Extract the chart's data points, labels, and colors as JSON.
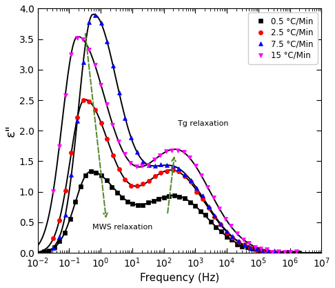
{
  "xlabel": "Frequency (Hz)",
  "ylabel": "ε\"",
  "xlim_exp": [
    -2,
    7
  ],
  "ylim": [
    0.0,
    4.0
  ],
  "yticks": [
    0.0,
    0.5,
    1.0,
    1.5,
    2.0,
    2.5,
    3.0,
    3.5,
    4.0
  ],
  "legend_labels": [
    "0.5 °C/Min",
    "2.5 °C/Min",
    "7.5 °C/Min",
    "15 °C/Min"
  ],
  "colors": [
    "black",
    "red",
    "blue",
    "magenta"
  ],
  "markers": [
    "s",
    "o",
    "^",
    "v"
  ],
  "fit_color": "black",
  "arrow_color": "#5a8c30",
  "annotation_mws": "MWS relaxation",
  "annotation_tg": "Tg relaxation",
  "series": [
    {
      "key": "0.5",
      "p1_f0": 0.45,
      "p1_amp": 1.28,
      "p1_lw": 0.48,
      "p1_rw": 0.85,
      "p2_f0": 220,
      "p2_amp": 0.93,
      "p2_lw": 1.1,
      "p2_rw": 1.05,
      "scatter_f_min": -1.8,
      "scatter_f_max": 6.3,
      "scatter_n": 50
    },
    {
      "key": "2.5",
      "p1_f0": 0.3,
      "p1_amp": 2.45,
      "p1_lw": 0.45,
      "p1_rw": 0.8,
      "p2_f0": 180,
      "p2_amp": 1.35,
      "p2_lw": 1.1,
      "p2_rw": 1.05,
      "scatter_f_min": -1.5,
      "scatter_f_max": 5.5,
      "scatter_n": 38
    },
    {
      "key": "7.5",
      "p1_f0": 0.55,
      "p1_amp": 3.8,
      "p1_lw": 0.45,
      "p1_rw": 0.8,
      "p2_f0": 180,
      "p2_amp": 1.4,
      "p2_lw": 1.1,
      "p2_rw": 1.05,
      "scatter_f_min": -1.5,
      "scatter_f_max": 5.5,
      "scatter_n": 38
    },
    {
      "key": "15",
      "p1_f0": 0.18,
      "p1_amp": 3.5,
      "p1_lw": 0.48,
      "p1_rw": 0.95,
      "p2_f0": 250,
      "p2_amp": 1.68,
      "p2_lw": 1.15,
      "p2_rw": 1.05,
      "scatter_f_min": -1.5,
      "scatter_f_max": 6.2,
      "scatter_n": 42
    }
  ]
}
